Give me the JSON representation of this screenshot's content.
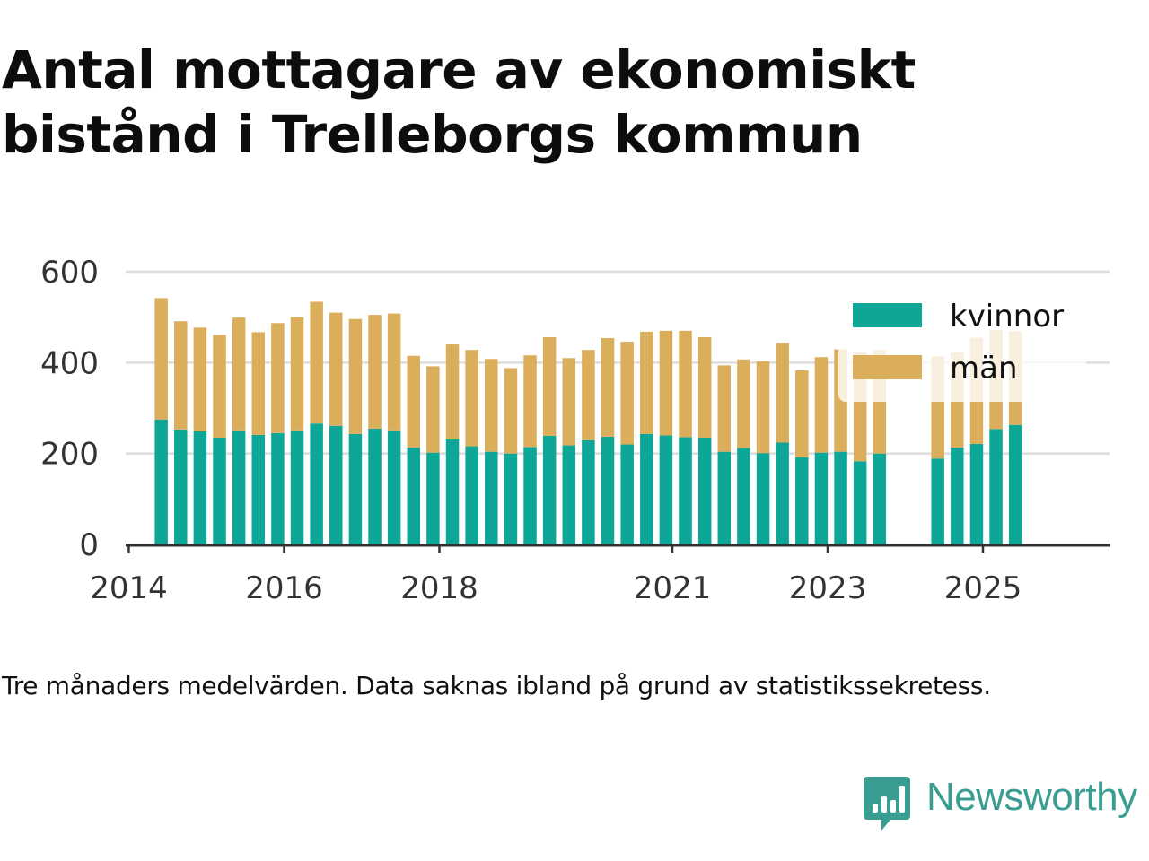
{
  "title": "Antal mottagare av ekonomiskt bistånd i Trelleborgs kommun",
  "note": "Tre månaders medelvärden. Data saknas ibland på grund av statistikssekretess.",
  "brand": {
    "name": "Newsworthy",
    "icon": "newsworthy-logo-icon"
  },
  "colors": {
    "kvinnor": "#0ea697",
    "man": "#dbae5c",
    "grid": "#dddddd",
    "axis": "#333333",
    "text": "#333333"
  },
  "chart_data": {
    "type": "bar",
    "stacked": true,
    "title": "Antal mottagare av ekonomiskt bistånd i Trelleborgs kommun",
    "xlabel": "",
    "ylabel": "",
    "ylim": [
      0,
      600
    ],
    "yticks": [
      "0",
      "200",
      "400",
      "600"
    ],
    "xticks": [
      "2014",
      "2016",
      "2018",
      "2021",
      "2023",
      "2025"
    ],
    "grid": true,
    "legend": "top-right",
    "x": [
      "2014-06",
      "2014-09",
      "2014-12",
      "2015-03",
      "2015-06",
      "2015-09",
      "2015-12",
      "2016-03",
      "2016-06",
      "2016-09",
      "2016-12",
      "2017-03",
      "2017-06",
      "2017-09",
      "2017-12",
      "2018-03",
      "2018-06",
      "2018-09",
      "2018-12",
      "2019-03",
      "2019-06",
      "2019-09",
      "2019-12",
      "2020-03",
      "2020-06",
      "2020-09",
      "2020-12",
      "2021-03",
      "2021-06",
      "2021-09",
      "2021-12",
      "2022-03",
      "2022-06",
      "2022-09",
      "2022-12",
      "2023-03",
      "2023-06",
      "2023-09",
      "2023-12",
      "2024-03",
      "2024-06",
      "2024-09",
      "2024-12",
      "2025-03",
      "2025-06"
    ],
    "series": [
      {
        "name": "kvinnor",
        "values": [
          275,
          253,
          249,
          235,
          251,
          241,
          245,
          251,
          266,
          261,
          243,
          255,
          251,
          213,
          202,
          231,
          216,
          204,
          200,
          214,
          239,
          218,
          229,
          237,
          220,
          243,
          240,
          236,
          235,
          204,
          212,
          201,
          224,
          192,
          202,
          204,
          183,
          200,
          null,
          null,
          189,
          213,
          221,
          254,
          263
        ]
      },
      {
        "name": "män",
        "values": [
          267,
          238,
          228,
          226,
          248,
          226,
          242,
          249,
          268,
          249,
          253,
          250,
          257,
          202,
          190,
          209,
          212,
          204,
          188,
          202,
          217,
          192,
          199,
          217,
          226,
          225,
          230,
          234,
          221,
          190,
          195,
          202,
          220,
          191,
          210,
          225,
          240,
          228,
          null,
          null,
          225,
          210,
          234,
          218,
          206
        ]
      }
    ]
  }
}
